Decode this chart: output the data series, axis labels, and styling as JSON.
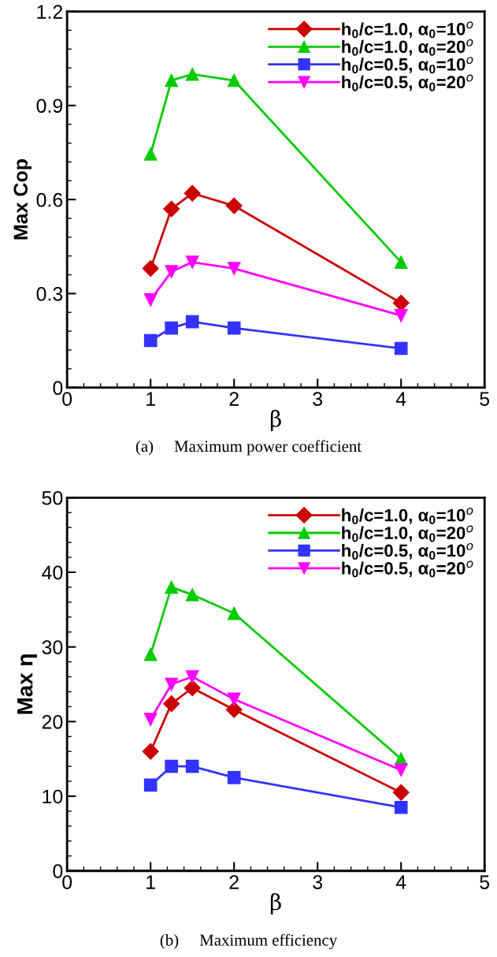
{
  "chart_data": [
    {
      "type": "line",
      "xlabel": "β",
      "ylabel": "Max Cop",
      "xlim": [
        0,
        5
      ],
      "ylim": [
        0,
        1.2
      ],
      "xticks": [
        0,
        1,
        2,
        3,
        4,
        5
      ],
      "yticks": [
        0,
        0.3,
        0.6,
        0.9,
        1.2
      ],
      "grid": false,
      "legend": "top right",
      "line_style": "solid",
      "x": [
        1,
        1.25,
        1.5,
        2,
        4
      ],
      "annotations": [
        "(a)     Maximum power coefficient"
      ],
      "series": [
        {
          "name": "h$_{0}$/c=1.0, α$_{0}$=10$^{o}$",
          "color": "#cc0000",
          "marker": "diamond",
          "values": [
            0.38,
            0.57,
            0.62,
            0.58,
            0.27
          ]
        },
        {
          "name": "h$_{0}$/c=1.0, α$_{0}$=20$^{o}$",
          "color": "#00cc00",
          "marker": "triangle",
          "values": [
            0.745,
            0.98,
            1.0,
            0.98,
            0.4
          ]
        },
        {
          "name": "h$_{0}$/c=0.5, α$_{0}$=10$^{o}$",
          "color": "#3333ff",
          "marker": "square",
          "values": [
            0.15,
            0.19,
            0.21,
            0.19,
            0.125
          ]
        },
        {
          "name": "h$_{0}$/c=0.5, α$_{0}$=20$^{o}$",
          "color": "#ff00ff",
          "marker": "triangle_down",
          "values": [
            0.28,
            0.37,
            0.4,
            0.38,
            0.23
          ]
        }
      ]
    },
    {
      "type": "line",
      "xlabel": "β",
      "ylabel": "Max η",
      "xlim": [
        0,
        5
      ],
      "ylim": [
        0,
        50
      ],
      "xticks": [
        0,
        1,
        2,
        3,
        4,
        5
      ],
      "yticks": [
        0,
        10,
        20,
        30,
        40,
        50
      ],
      "grid": false,
      "legend": "top right",
      "line_style": "solid",
      "x": [
        1,
        1.25,
        1.5,
        2,
        4
      ],
      "annotations": [
        "(b)     Maximum efficiency"
      ],
      "series": [
        {
          "name": "h$_{0}$/c=1.0, α$_{0}$=10$^{o}$",
          "color": "#cc0000",
          "marker": "diamond",
          "values": [
            16,
            22.4,
            24.5,
            21.6,
            10.5
          ]
        },
        {
          "name": "h$_{0}$/c=1.0, α$_{0}$=20$^{o}$",
          "color": "#00cc00",
          "marker": "triangle",
          "values": [
            29,
            38,
            37,
            34.5,
            15
          ]
        },
        {
          "name": "h$_{0}$/c=0.5, α$_{0}$=10$^{o}$",
          "color": "#3333ff",
          "marker": "square",
          "values": [
            11.5,
            14,
            14,
            12.5,
            8.5
          ]
        },
        {
          "name": "h$_{0}$/c=0.5, α$_{0}$=20$^{o}$",
          "color": "#ff00ff",
          "marker": "triangle_down",
          "values": [
            20.3,
            25,
            26,
            23,
            13.5
          ]
        }
      ]
    }
  ]
}
